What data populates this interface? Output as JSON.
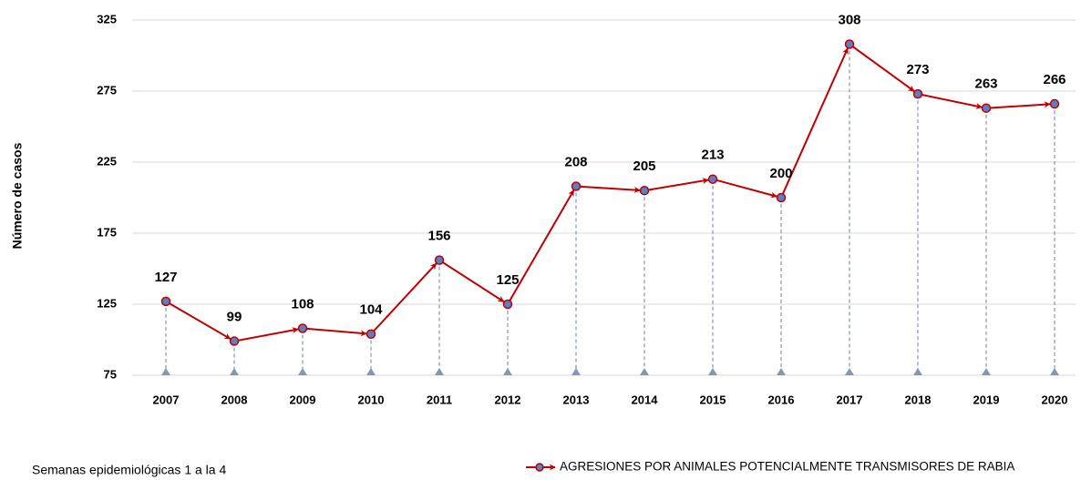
{
  "chart_data": {
    "type": "line",
    "y_label": "Número de casos",
    "note": "Semanas epidemiológicas 1 a la 4",
    "categories": [
      "2007",
      "2008",
      "2009",
      "2010",
      "2011",
      "2012",
      "2013",
      "2014",
      "2015",
      "2016",
      "2017",
      "2018",
      "2019",
      "2020"
    ],
    "series": [
      {
        "name": "AGRESIONES POR ANIMALES POTENCIALMENTE TRANSMISORES DE RABIA",
        "color": "#c00000",
        "marker_color": "#5b7fc4",
        "values": [
          127,
          99,
          108,
          104,
          156,
          125,
          208,
          205,
          213,
          200,
          308,
          273,
          263,
          266
        ]
      }
    ],
    "ylim": [
      75,
      325
    ],
    "yticks": [
      75,
      125,
      175,
      225,
      275,
      325
    ],
    "grid": true
  }
}
